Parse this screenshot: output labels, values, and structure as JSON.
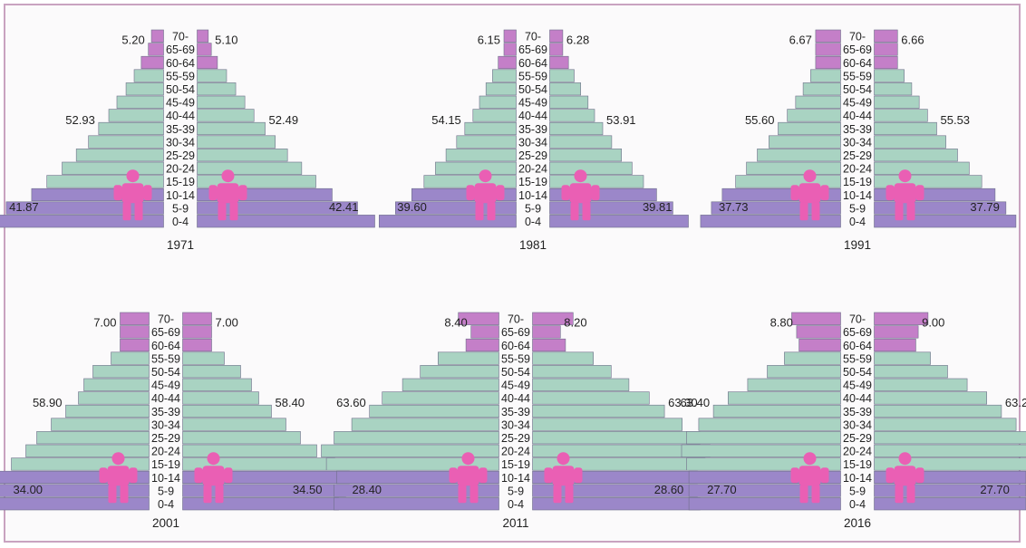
{
  "colors": {
    "children": "#9b87c9",
    "working": "#a9d3c2",
    "elderly": "#c47fc8",
    "figure": "#ea5fb4",
    "bar_stroke": "#6f6f8a"
  },
  "icons": [
    "person-figure-icon"
  ],
  "chart_data": [
    {
      "type": "bar",
      "title": "1971",
      "categories": [
        "70-",
        "65-69",
        "60-64",
        "55-59",
        "50-54",
        "45-49",
        "40-44",
        "35-39",
        "30-34",
        "25-29",
        "20-24",
        "15-19",
        "10-14",
        "5-9",
        "0-4"
      ],
      "series": [
        {
          "values": [
            1.2,
            1.5,
            2.2,
            2.9,
            3.7,
            4.6,
            5.4,
            6.4,
            7.4,
            8.6,
            10.0,
            11.5,
            13.0,
            15.5,
            17.0
          ]
        },
        {
          "values": [
            1.1,
            1.4,
            2.0,
            2.9,
            3.8,
            4.7,
            5.6,
            6.7,
            7.7,
            8.9,
            10.3,
            11.7,
            13.3,
            15.8,
            17.5
          ]
        }
      ],
      "labels": {
        "elderly": [
          "5.20",
          "5.10"
        ],
        "working": [
          "52.93",
          "52.49"
        ],
        "children": [
          "41.87",
          "42.41"
        ]
      }
    },
    {
      "type": "bar",
      "title": "1981",
      "categories": [
        "70-",
        "65-69",
        "60-64",
        "55-59",
        "50-54",
        "45-49",
        "40-44",
        "35-39",
        "30-34",
        "25-29",
        "20-24",
        "15-19",
        "10-14",
        "5-9",
        "0-4"
      ],
      "series": [
        {
          "values": [
            1.5,
            1.5,
            2.2,
            2.9,
            3.7,
            4.5,
            5.3,
            6.3,
            7.3,
            8.6,
            9.9,
            11.3,
            12.8,
            14.8,
            16.8
          ]
        },
        {
          "values": [
            1.6,
            1.6,
            2.3,
            3.0,
            3.8,
            4.7,
            5.5,
            6.5,
            7.6,
            8.8,
            10.1,
            11.5,
            13.1,
            15.1,
            17.0
          ]
        }
      ],
      "labels": {
        "elderly": [
          "6.15",
          "6.28"
        ],
        "working": [
          "54.15",
          "53.91"
        ],
        "children": [
          "39.60",
          "39.81"
        ]
      }
    },
    {
      "type": "bar",
      "title": "1991",
      "categories": [
        "70-",
        "65-69",
        "60-64",
        "55-59",
        "50-54",
        "45-49",
        "40-44",
        "35-39",
        "30-34",
        "25-29",
        "20-24",
        "15-19",
        "10-14",
        "5-9",
        "0-4"
      ],
      "series": [
        {
          "values": [
            3.0,
            3.0,
            3.0,
            3.6,
            4.5,
            5.4,
            6.4,
            7.5,
            8.6,
            10.0,
            11.3,
            12.6,
            14.2,
            15.5,
            16.8
          ]
        },
        {
          "values": [
            2.8,
            2.8,
            2.8,
            3.6,
            4.5,
            5.4,
            6.4,
            7.5,
            8.6,
            10.0,
            11.4,
            12.9,
            14.5,
            15.8,
            17.0
          ]
        }
      ],
      "labels": {
        "elderly": [
          "6.67",
          "6.66"
        ],
        "working": [
          "55.60",
          "55.53"
        ],
        "children": [
          "37.73",
          "37.79"
        ]
      }
    },
    {
      "type": "bar",
      "title": "2001",
      "categories": [
        "70-",
        "65-69",
        "60-64",
        "55-59",
        "50-54",
        "45-49",
        "40-44",
        "35-39",
        "30-34",
        "25-29",
        "20-24",
        "15-19",
        "10-14",
        "5-9",
        "0-4"
      ],
      "series": [
        {
          "values": [
            1.6,
            1.6,
            1.6,
            2.1,
            3.1,
            3.6,
            3.9,
            4.6,
            5.4,
            6.2,
            6.8,
            7.6,
            8.4,
            8.9,
            8.5
          ]
        },
        {
          "values": [
            1.6,
            1.6,
            1.6,
            2.3,
            3.2,
            3.8,
            4.2,
            4.9,
            5.7,
            6.5,
            7.4,
            8.4,
            9.2,
            9.0,
            8.6
          ]
        }
      ],
      "labels": {
        "elderly": [
          "7.00",
          "7.00"
        ],
        "working": [
          "58.90",
          "58.40"
        ],
        "children": [
          "34.00",
          "34.50"
        ]
      }
    },
    {
      "type": "bar",
      "title": "2011",
      "categories": [
        "70-",
        "65-69",
        "60-64",
        "55-59",
        "50-54",
        "45-49",
        "40-44",
        "35-39",
        "30-34",
        "25-29",
        "20-24",
        "15-19",
        "10-14",
        "5-9",
        "0-4"
      ],
      "series": [
        {
          "values": [
            1.6,
            1.1,
            1.3,
            2.4,
            3.1,
            3.8,
            4.6,
            5.1,
            5.8,
            6.5,
            7.0,
            6.8,
            6.4,
            6.5,
            6.5
          ]
        },
        {
          "values": [
            1.6,
            1.1,
            1.3,
            2.4,
            3.1,
            3.8,
            4.6,
            5.2,
            5.9,
            6.6,
            7.0,
            6.8,
            6.5,
            6.5,
            6.6
          ]
        }
      ],
      "labels": {
        "elderly": [
          "8.40",
          "8.20"
        ],
        "working": [
          "63.60",
          "63.30"
        ],
        "children": [
          "28.40",
          "28.60"
        ]
      }
    },
    {
      "type": "bar",
      "title": "2016",
      "categories": [
        "70-",
        "65-69",
        "60-64",
        "55-59",
        "50-54",
        "45-49",
        "40-44",
        "35-39",
        "30-34",
        "25-29",
        "20-24",
        "15-19",
        "10-14",
        "5-9",
        "0-4"
      ],
      "series": [
        {
          "values": [
            2.0,
            1.8,
            1.7,
            2.3,
            3.0,
            3.8,
            4.6,
            5.2,
            5.8,
            6.3,
            6.5,
            6.3,
            6.2,
            6.2,
            6.2
          ]
        },
        {
          "values": [
            2.2,
            1.8,
            1.7,
            2.3,
            3.0,
            3.8,
            4.6,
            5.2,
            5.8,
            6.3,
            6.5,
            6.3,
            6.2,
            6.2,
            6.2
          ]
        }
      ],
      "labels": {
        "elderly": [
          "8.80",
          "9.00"
        ],
        "working": [
          "63.40",
          "63.20"
        ],
        "children": [
          "27.70",
          "27.70"
        ]
      }
    }
  ]
}
